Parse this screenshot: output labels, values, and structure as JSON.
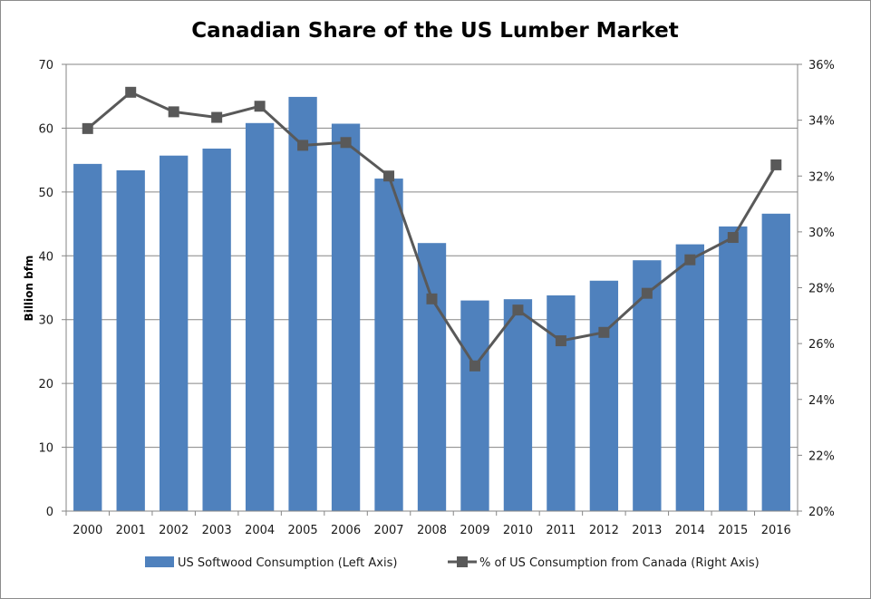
{
  "chart_data": {
    "type": "bar",
    "title": "Canadian Share of the US Lumber Market",
    "xlabel": "",
    "ylabel": "Billion bfm",
    "ylabel_right": "",
    "categories": [
      "2000",
      "2001",
      "2002",
      "2003",
      "2004",
      "2005",
      "2006",
      "2007",
      "2008",
      "2009",
      "2010",
      "2011",
      "2012",
      "2013",
      "2014",
      "2015",
      "2016"
    ],
    "ylim": [
      0,
      70
    ],
    "ylim_right": [
      20,
      36
    ],
    "yticks": [
      "0",
      "10",
      "20",
      "30",
      "40",
      "50",
      "60",
      "70"
    ],
    "yticks_right": [
      "20%",
      "22%",
      "24%",
      "26%",
      "28%",
      "30%",
      "32%",
      "34%",
      "36%"
    ],
    "grid": true,
    "legend_position": "bottom",
    "series": [
      {
        "name": "US Softwood Consumption (Left Axis)",
        "type": "bar",
        "axis": "left",
        "color": "#4f81bd",
        "values": [
          54.4,
          53.4,
          55.7,
          56.8,
          60.8,
          64.9,
          60.7,
          52.1,
          42.0,
          33.0,
          33.2,
          33.8,
          36.1,
          39.3,
          41.8,
          44.6,
          46.6
        ]
      },
      {
        "name": "% of US Consumption from Canada (Right Axis)",
        "type": "line",
        "axis": "right",
        "marker": "square",
        "color": "#595959",
        "values": [
          33.7,
          35.0,
          34.3,
          34.1,
          34.5,
          33.1,
          33.2,
          32.0,
          27.6,
          25.2,
          27.2,
          26.1,
          26.4,
          27.8,
          29.0,
          29.8,
          32.4
        ]
      }
    ]
  }
}
